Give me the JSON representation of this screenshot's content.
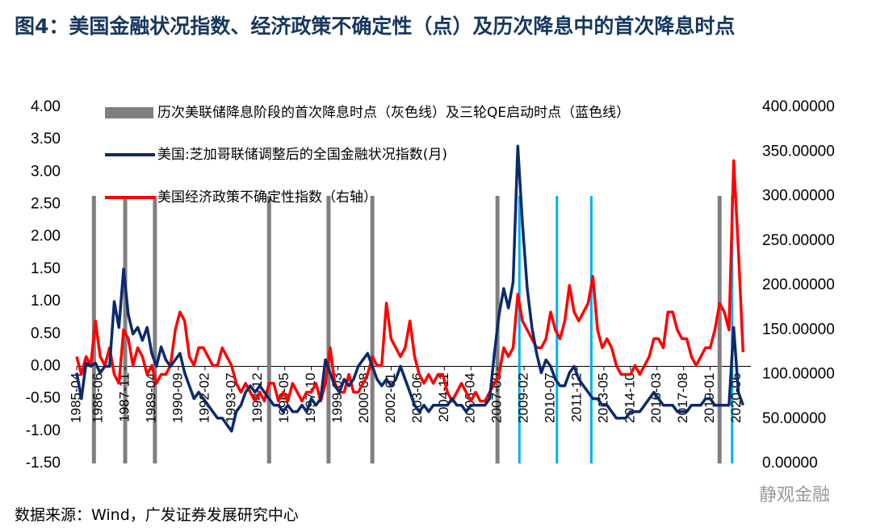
{
  "chart_data": {
    "type": "line",
    "title": "图4：美国金融状况指数、经济政策不确定性（点）及历次降息中的首次降息时点",
    "source": "数据来源：Wind，广发证券发展研究中心",
    "watermark": "静观金融",
    "x": [
      "1985-04",
      "1985-07",
      "1985-10",
      "1986-01",
      "1986-04",
      "1986-07",
      "1986-10",
      "1987-01",
      "1987-04",
      "1987-07",
      "1987-10",
      "1988-01",
      "1988-04",
      "1988-07",
      "1988-10",
      "1989-01",
      "1989-04",
      "1989-07",
      "1989-10",
      "1990-01",
      "1990-04",
      "1990-07",
      "1990-10",
      "1991-01",
      "1991-04",
      "1991-07",
      "1991-10",
      "1992-01",
      "1992-04",
      "1992-07",
      "1992-10",
      "1993-01",
      "1993-04",
      "1993-07",
      "1993-10",
      "1994-01",
      "1994-04",
      "1994-07",
      "1994-10",
      "1995-01",
      "1995-04",
      "1995-07",
      "1995-10",
      "1996-01",
      "1996-04",
      "1996-07",
      "1996-10",
      "1997-01",
      "1997-04",
      "1997-07",
      "1997-10",
      "1998-01",
      "1998-04",
      "1998-07",
      "1998-10",
      "1999-01",
      "1999-04",
      "1999-07",
      "1999-10",
      "2000-01",
      "2000-04",
      "2000-07",
      "2000-10",
      "2001-01",
      "2001-04",
      "2001-07",
      "2001-10",
      "2002-01",
      "2002-04",
      "2002-07",
      "2002-10",
      "2003-01",
      "2003-04",
      "2003-07",
      "2003-10",
      "2004-01",
      "2004-04",
      "2004-07",
      "2004-10",
      "2005-01",
      "2005-04",
      "2005-07",
      "2005-10",
      "2006-01",
      "2006-04",
      "2006-07",
      "2006-10",
      "2007-01",
      "2007-04",
      "2007-07",
      "2007-10",
      "2008-01",
      "2008-04",
      "2008-07",
      "2008-10",
      "2009-01",
      "2009-04",
      "2009-07",
      "2009-10",
      "2010-01",
      "2010-04",
      "2010-07",
      "2010-10",
      "2011-01",
      "2011-04",
      "2011-07",
      "2011-10",
      "2012-01",
      "2012-04",
      "2012-07",
      "2012-10",
      "2013-01",
      "2013-04",
      "2013-07",
      "2013-10",
      "2014-01",
      "2014-04",
      "2014-07",
      "2014-10",
      "2015-01",
      "2015-04",
      "2015-07",
      "2015-10",
      "2016-01",
      "2016-04",
      "2016-07",
      "2016-10",
      "2017-01",
      "2017-04",
      "2017-07",
      "2017-10",
      "2018-01",
      "2018-04",
      "2018-07",
      "2018-10",
      "2019-01",
      "2019-04",
      "2019-07",
      "2019-10",
      "2020-01",
      "2020-04",
      "2020-07",
      "2020-10"
    ],
    "xlim": [
      "1985-04",
      "2021-03"
    ],
    "xticks": [
      "1985-04",
      "1986-06",
      "1987-11",
      "1989-04",
      "1990-09",
      "1992-02",
      "1993-07",
      "1994-12",
      "1996-05",
      "1997-10",
      "1999-03",
      "2000-08",
      "2002-01",
      "2003-06",
      "2004-11",
      "2006-04",
      "2007-09",
      "2009-02",
      "2010-07",
      "2011-12",
      "2013-05",
      "2014-10",
      "2016-03",
      "2017-08",
      "2019-01",
      "2020-06"
    ],
    "series": [
      {
        "name": "美国:芝加哥联储调整后的全国金融状况指数(月)",
        "color": "#0c2a6b",
        "axis": "y",
        "values": [
          -0.1,
          -0.5,
          0.05,
          0.0,
          0.05,
          -0.1,
          0.0,
          0.0,
          1.0,
          0.6,
          1.5,
          0.8,
          0.5,
          0.6,
          0.4,
          0.6,
          0.2,
          0.0,
          0.3,
          0.1,
          0.0,
          0.1,
          0.2,
          -0.1,
          -0.3,
          -0.5,
          -0.4,
          -0.5,
          -0.6,
          -0.7,
          -0.8,
          -0.8,
          -0.9,
          -1.0,
          -0.7,
          -0.6,
          -0.4,
          -0.3,
          -0.4,
          -0.3,
          -0.4,
          -0.5,
          -0.6,
          -0.6,
          -0.7,
          -0.6,
          -0.7,
          -0.7,
          -0.6,
          -0.7,
          -0.5,
          -0.6,
          -0.5,
          0.1,
          -0.1,
          -0.3,
          -0.4,
          -0.2,
          -0.3,
          -0.2,
          0.0,
          0.1,
          0.2,
          0.0,
          -0.2,
          -0.3,
          -0.2,
          -0.3,
          -0.2,
          0.0,
          -0.2,
          -0.4,
          -0.6,
          -0.7,
          -0.6,
          -0.7,
          -0.6,
          -0.6,
          -0.6,
          -0.6,
          -0.5,
          -0.6,
          -0.6,
          -0.7,
          -0.6,
          -0.6,
          -0.6,
          -0.6,
          -0.5,
          0.2,
          0.8,
          1.2,
          0.9,
          1.3,
          3.4,
          2.2,
          1.2,
          0.6,
          0.2,
          -0.1,
          0.1,
          0.0,
          -0.2,
          -0.3,
          -0.3,
          -0.1,
          0.0,
          -0.2,
          -0.3,
          -0.4,
          -0.5,
          -0.5,
          -0.6,
          -0.6,
          -0.7,
          -0.8,
          -0.8,
          -0.8,
          -0.7,
          -0.7,
          -0.7,
          -0.6,
          -0.5,
          -0.4,
          -0.5,
          -0.6,
          -0.6,
          -0.6,
          -0.7,
          -0.7,
          -0.7,
          -0.6,
          -0.6,
          -0.6,
          -0.5,
          -0.5,
          -0.6,
          -0.6,
          -0.6,
          -0.6,
          0.6,
          -0.4,
          -0.6
        ]
      },
      {
        "name": "美国经济政策不确定性指数（右轴）",
        "color": "#ff0000",
        "axis": "y2",
        "values": [
          120,
          100,
          120,
          110,
          160,
          120,
          110,
          130,
          100,
          90,
          150,
          140,
          110,
          130,
          120,
          100,
          110,
          90,
          100,
          100,
          110,
          150,
          170,
          160,
          120,
          110,
          130,
          130,
          120,
          110,
          110,
          130,
          120,
          110,
          90,
          80,
          90,
          80,
          70,
          80,
          70,
          90,
          90,
          70,
          80,
          70,
          90,
          80,
          70,
          80,
          80,
          90,
          70,
          90,
          130,
          90,
          80,
          80,
          100,
          80,
          80,
          90,
          100,
          120,
          110,
          110,
          180,
          140,
          130,
          120,
          130,
          160,
          120,
          100,
          90,
          100,
          90,
          100,
          100,
          80,
          70,
          80,
          90,
          80,
          70,
          80,
          70,
          70,
          80,
          90,
          100,
          130,
          120,
          130,
          190,
          160,
          150,
          140,
          130,
          130,
          140,
          170,
          150,
          140,
          160,
          200,
          170,
          160,
          170,
          180,
          210,
          150,
          130,
          140,
          130,
          110,
          100,
          100,
          100,
          110,
          100,
          110,
          120,
          140,
          140,
          130,
          170,
          170,
          150,
          140,
          140,
          120,
          110,
          120,
          130,
          130,
          150,
          180,
          170,
          150,
          340,
          240,
          125
        ]
      }
    ],
    "event_lines": {
      "name": "历次美联储降息阶段的首次降息时点（灰色线）及三轮QE启动时点（蓝色线）",
      "groups": [
        {
          "color": "#808080",
          "x": [
            "1986-03",
            "1987-11",
            "1989-06",
            "1995-07",
            "1998-09",
            "2001-01",
            "2007-09",
            "2019-07"
          ]
        },
        {
          "color": "#00b0f0",
          "x": [
            "2008-11",
            "2010-11",
            "2012-09",
            "2020-03"
          ]
        }
      ]
    },
    "ylim": [
      -1.5,
      4.0
    ],
    "yticks": [
      {
        "value": -1.5,
        "label": "-1.50"
      },
      {
        "value": -1.0,
        "label": "-1.00"
      },
      {
        "value": -0.5,
        "label": "-0.50"
      },
      {
        "value": 0,
        "label": "0.00"
      },
      {
        "value": 0.5,
        "label": "0.50"
      },
      {
        "value": 1.0,
        "label": "1.00"
      },
      {
        "value": 1.5,
        "label": "1.50"
      },
      {
        "value": 2.0,
        "label": "2.00"
      },
      {
        "value": 2.5,
        "label": "2.50"
      },
      {
        "value": 3.0,
        "label": "3.00"
      },
      {
        "value": 3.5,
        "label": "3.50"
      },
      {
        "value": 4.0,
        "label": "4.00"
      }
    ],
    "y2lim": [
      0,
      400
    ],
    "y2ticks": [
      {
        "value": 0,
        "label": "0.00000"
      },
      {
        "value": 50,
        "label": "50.00000"
      },
      {
        "value": 100,
        "label": "100.00000"
      },
      {
        "value": 150,
        "label": "150.00000"
      },
      {
        "value": 200,
        "label": "200.00000"
      },
      {
        "value": 250,
        "label": "250.00000"
      },
      {
        "value": 300,
        "label": "300.00000"
      },
      {
        "value": 350,
        "label": "350.00000"
      },
      {
        "value": 400,
        "label": "400.00000"
      }
    ]
  }
}
